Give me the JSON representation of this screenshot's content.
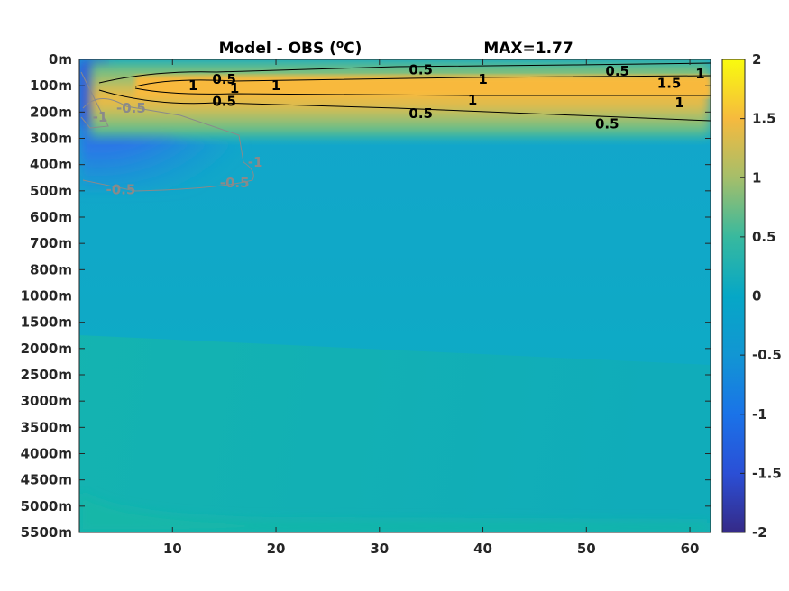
{
  "chart_data": {
    "type": "heatmap",
    "title": "Model - OBS (oC)",
    "title_parts": {
      "prefix": "Model - OBS (",
      "sup": "o",
      "suffix": "C)"
    },
    "max_label": "MAX=1.77",
    "xlabel": "",
    "ylabel": "",
    "xlim": [
      1,
      62
    ],
    "x_ticks": [
      10,
      20,
      30,
      40,
      50,
      60
    ],
    "y_ticks": [
      "0m",
      "100m",
      "200m",
      "300m",
      "400m",
      "500m",
      "600m",
      "700m",
      "800m",
      "1000m",
      "1500m",
      "2000m",
      "2500m",
      "3000m",
      "3500m",
      "4000m",
      "4500m",
      "5000m",
      "5500m"
    ],
    "colorbar": {
      "min": -2,
      "max": 2,
      "ticks": [
        "2",
        "1.5",
        "1",
        "0.5",
        "0",
        "-0.5",
        "-1",
        "-1.5",
        "-2"
      ],
      "colormap": "parula"
    },
    "max_value": 1.77,
    "surface_band": {
      "depth_center": "100m",
      "x_range": [
        6,
        62
      ],
      "peak_value": 1.77
    },
    "cold_anomaly": {
      "x_range": [
        1,
        18
      ],
      "depth_range": [
        "0m",
        "500m"
      ],
      "min_value": -1.2
    },
    "deep_value": 0.05,
    "contour_labels": [
      {
        "text": "0.5",
        "x": 15,
        "depth": "75m",
        "color": "#000000"
      },
      {
        "text": "1",
        "x": 12,
        "depth": "100m",
        "color": "#000000"
      },
      {
        "text": "1",
        "x": 16,
        "depth": "110m",
        "color": "#000000"
      },
      {
        "text": "1",
        "x": 20,
        "depth": "100m",
        "color": "#000000"
      },
      {
        "text": "0.5",
        "x": 15,
        "depth": "160m",
        "color": "#000000"
      },
      {
        "text": "0.5",
        "x": 34,
        "depth": "40m",
        "color": "#000000"
      },
      {
        "text": "1",
        "x": 40,
        "depth": "75m",
        "color": "#000000"
      },
      {
        "text": "1",
        "x": 39,
        "depth": "155m",
        "color": "#000000"
      },
      {
        "text": "0.5",
        "x": 34,
        "depth": "205m",
        "color": "#000000"
      },
      {
        "text": "0.5",
        "x": 53,
        "depth": "45m",
        "color": "#000000"
      },
      {
        "text": "1",
        "x": 61,
        "depth": "55m",
        "color": "#000000"
      },
      {
        "text": "1.5",
        "x": 58,
        "depth": "90m",
        "color": "#000000"
      },
      {
        "text": "1",
        "x": 59,
        "depth": "165m",
        "color": "#000000"
      },
      {
        "text": "0.5",
        "x": 52,
        "depth": "245m",
        "color": "#000000"
      },
      {
        "text": "-0.5",
        "x": 6,
        "depth": "185m",
        "color": "#8a8a8a"
      },
      {
        "text": "-1",
        "x": 3,
        "depth": "220m",
        "color": "#8a8a8a"
      },
      {
        "text": "-0.5",
        "x": 5,
        "depth": "495m",
        "color": "#8a8a8a"
      },
      {
        "text": "-0.5",
        "x": 16,
        "depth": "470m",
        "color": "#8a8a8a"
      },
      {
        "text": "-1",
        "x": 18,
        "depth": "390m",
        "color": "#8a8a8a"
      }
    ]
  }
}
